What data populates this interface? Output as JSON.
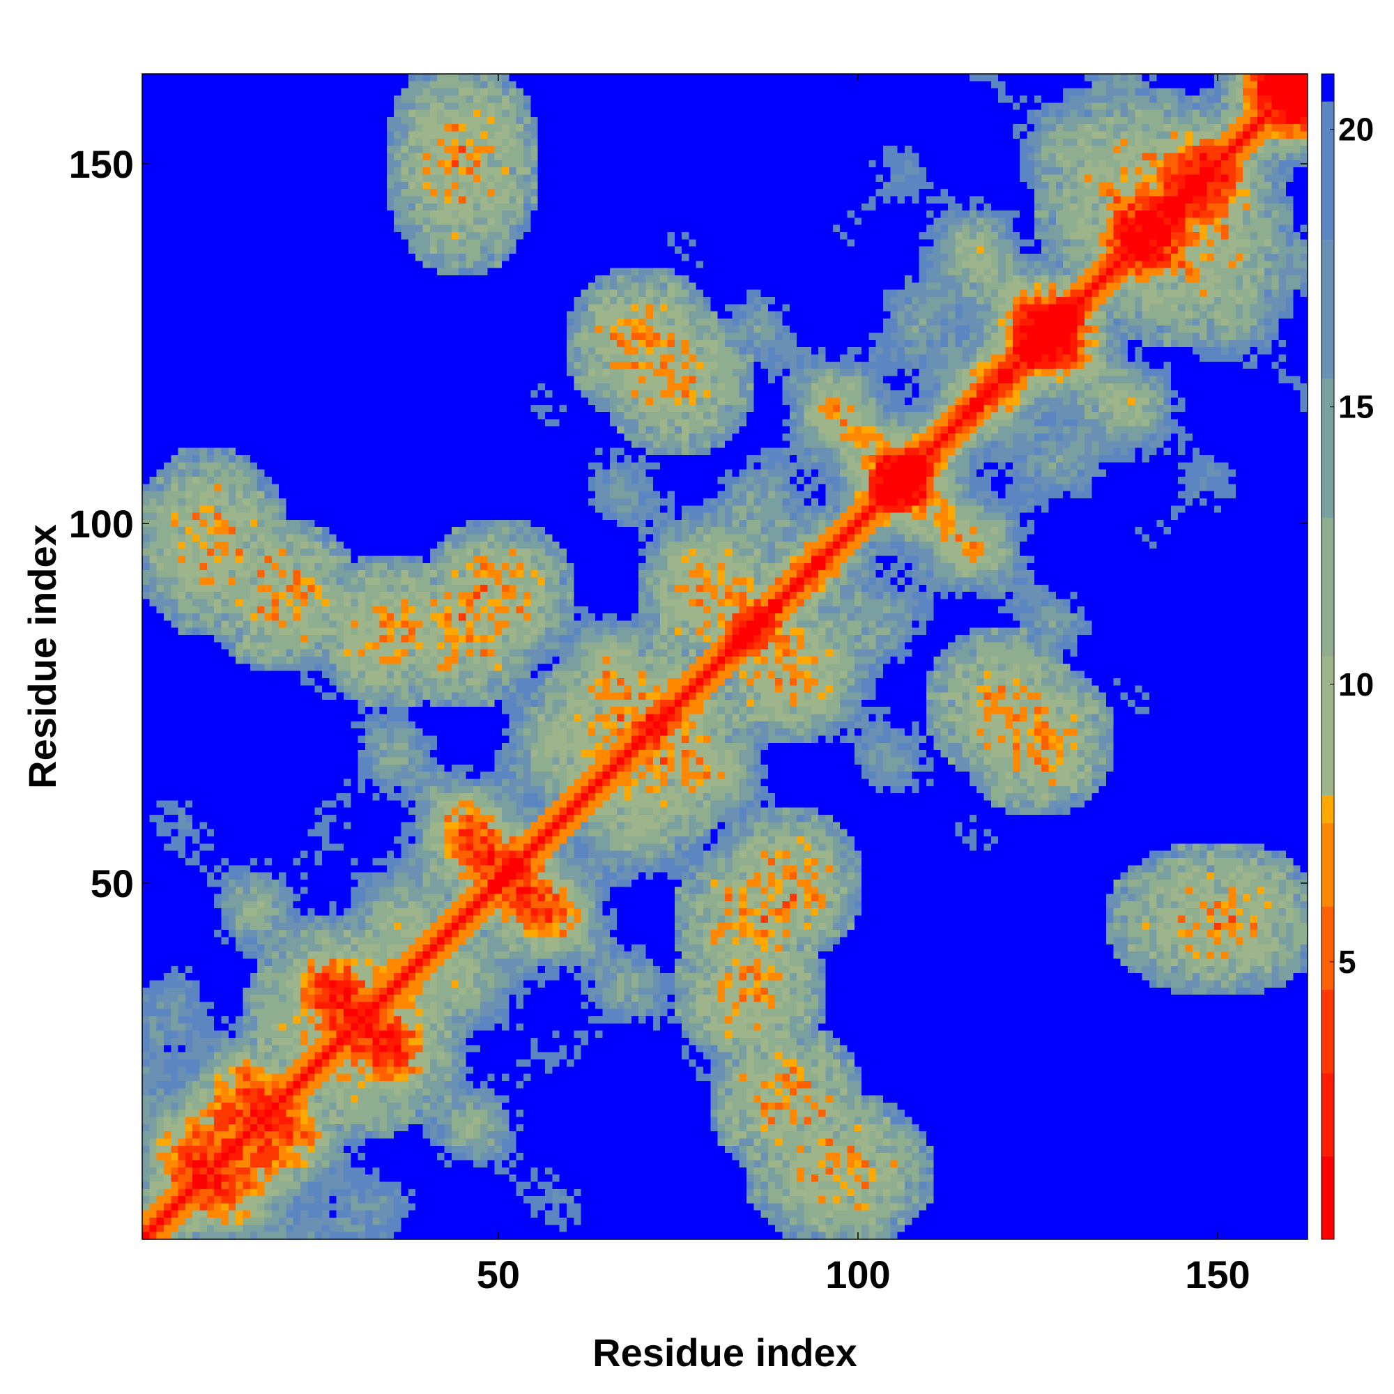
{
  "chart_data": {
    "type": "heatmap",
    "title": "",
    "xlabel": "Residue index",
    "ylabel": "Residue index",
    "n_residues": 162,
    "xlim": [
      1,
      162
    ],
    "ylim": [
      1,
      162
    ],
    "x_ticks": [
      {
        "value": 50,
        "label": "50"
      },
      {
        "value": 100,
        "label": "100"
      },
      {
        "value": 150,
        "label": "150"
      }
    ],
    "y_ticks": [
      {
        "value": 50,
        "label": "50"
      },
      {
        "value": 100,
        "label": "100"
      },
      {
        "value": 150,
        "label": "150"
      }
    ],
    "colorbar": {
      "range": [
        0,
        21
      ],
      "ticks": [
        {
          "value": 5,
          "label": "5"
        },
        {
          "value": 10,
          "label": "10"
        },
        {
          "value": 15,
          "label": "15"
        },
        {
          "value": 20,
          "label": "20"
        }
      ],
      "levels": [
        {
          "max": 1.5,
          "color": "#ff0000"
        },
        {
          "max": 3.0,
          "color": "#ff1a00"
        },
        {
          "max": 4.5,
          "color": "#ff3800"
        },
        {
          "max": 6.0,
          "color": "#ff6000"
        },
        {
          "max": 7.5,
          "color": "#ff8800"
        },
        {
          "max": 8.0,
          "color": "#ffa800"
        },
        {
          "max": 10.5,
          "color": "#9eb58c"
        },
        {
          "max": 13.0,
          "color": "#8fae8f"
        },
        {
          "max": 15.5,
          "color": "#7a9fa0"
        },
        {
          "max": 18.0,
          "color": "#6a91b4"
        },
        {
          "max": 20.5,
          "color": "#5b86c2"
        },
        {
          "max": 21.0,
          "color": "#0000ff"
        }
      ]
    },
    "grid": false,
    "legend": "colorbar-right",
    "contact_regions": [
      {
        "i": [
          20,
          40
        ],
        "j": [
          20,
          40
        ],
        "kind": "diagonal-block"
      },
      {
        "i": [
          60,
          80
        ],
        "j": [
          60,
          80
        ],
        "kind": "diagonal-block"
      },
      {
        "i": [
          65,
          75
        ],
        "j": [
          120,
          130
        ],
        "kind": "antiparallel-strand"
      },
      {
        "i": [
          80,
          90
        ],
        "j": [
          40,
          50
        ],
        "kind": "patch"
      },
      {
        "i": [
          85,
          95
        ],
        "j": [
          75,
          85
        ],
        "kind": "antiparallel-strand"
      },
      {
        "i": [
          115,
          125
        ],
        "j": [
          70,
          80
        ],
        "kind": "antiparallel-strand"
      },
      {
        "i": [
          30,
          40
        ],
        "j": [
          80,
          90
        ],
        "kind": "patch"
      },
      {
        "i": [
          45,
          55
        ],
        "j": [
          85,
          95
        ],
        "kind": "patch"
      },
      {
        "i": [
          5,
          15
        ],
        "j": [
          90,
          105
        ],
        "kind": "patch"
      },
      {
        "i": [
          85,
          95
        ],
        "j": [
          15,
          25
        ],
        "kind": "patch"
      },
      {
        "i": [
          135,
          155
        ],
        "j": [
          130,
          150
        ],
        "kind": "diagonal-block"
      },
      {
        "i": [
          140,
          160
        ],
        "j": [
          40,
          50
        ],
        "kind": "patch"
      }
    ]
  }
}
